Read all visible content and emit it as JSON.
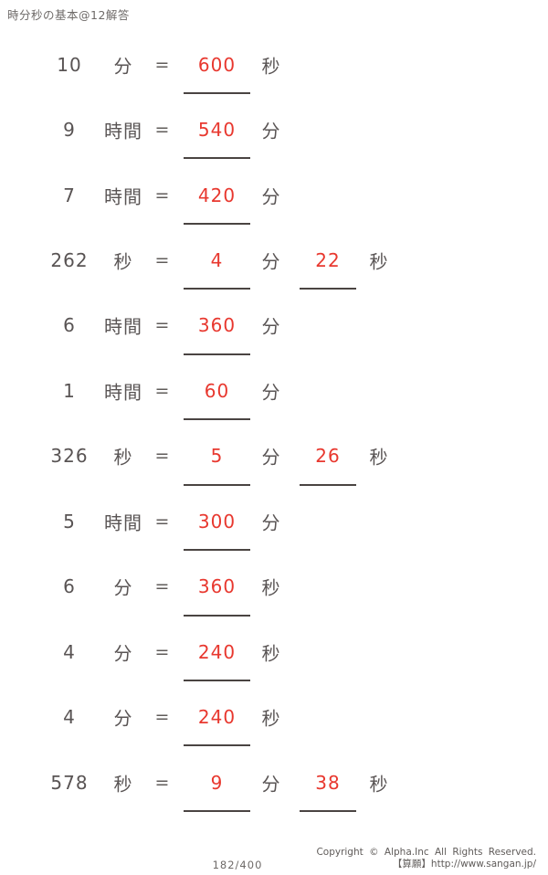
{
  "page": {
    "title": "時分秒の基本@12解答",
    "page_number": "182/400",
    "copyright_line1": "Copyright © Alpha.Inc All Rights Reserved.",
    "copyright_line2": "【算願】http://www.sangan.jp/"
  },
  "symbols": {
    "equals": "="
  },
  "colors": {
    "body_text": "#595454",
    "answer_red": "#e8382f",
    "underline": "#4a4442",
    "footer_text": "#5f5b59",
    "background": "#ffffff"
  },
  "problems": [
    {
      "value": "10",
      "unit": "分",
      "answer1": "600",
      "unit2": "秒"
    },
    {
      "value": "9",
      "unit": "時間",
      "answer1": "540",
      "unit2": "分"
    },
    {
      "value": "7",
      "unit": "時間",
      "answer1": "420",
      "unit2": "分"
    },
    {
      "value": "262",
      "unit": "秒",
      "answer1": "4",
      "unit2": "分",
      "answer2": "22",
      "unit3": "秒"
    },
    {
      "value": "6",
      "unit": "時間",
      "answer1": "360",
      "unit2": "分"
    },
    {
      "value": "1",
      "unit": "時間",
      "answer1": "60",
      "unit2": "分"
    },
    {
      "value": "326",
      "unit": "秒",
      "answer1": "5",
      "unit2": "分",
      "answer2": "26",
      "unit3": "秒"
    },
    {
      "value": "5",
      "unit": "時間",
      "answer1": "300",
      "unit2": "分"
    },
    {
      "value": "6",
      "unit": "分",
      "answer1": "360",
      "unit2": "秒"
    },
    {
      "value": "4",
      "unit": "分",
      "answer1": "240",
      "unit2": "秒"
    },
    {
      "value": "4",
      "unit": "分",
      "answer1": "240",
      "unit2": "秒"
    },
    {
      "value": "578",
      "unit": "秒",
      "answer1": "9",
      "unit2": "分",
      "answer2": "38",
      "unit3": "秒"
    }
  ]
}
